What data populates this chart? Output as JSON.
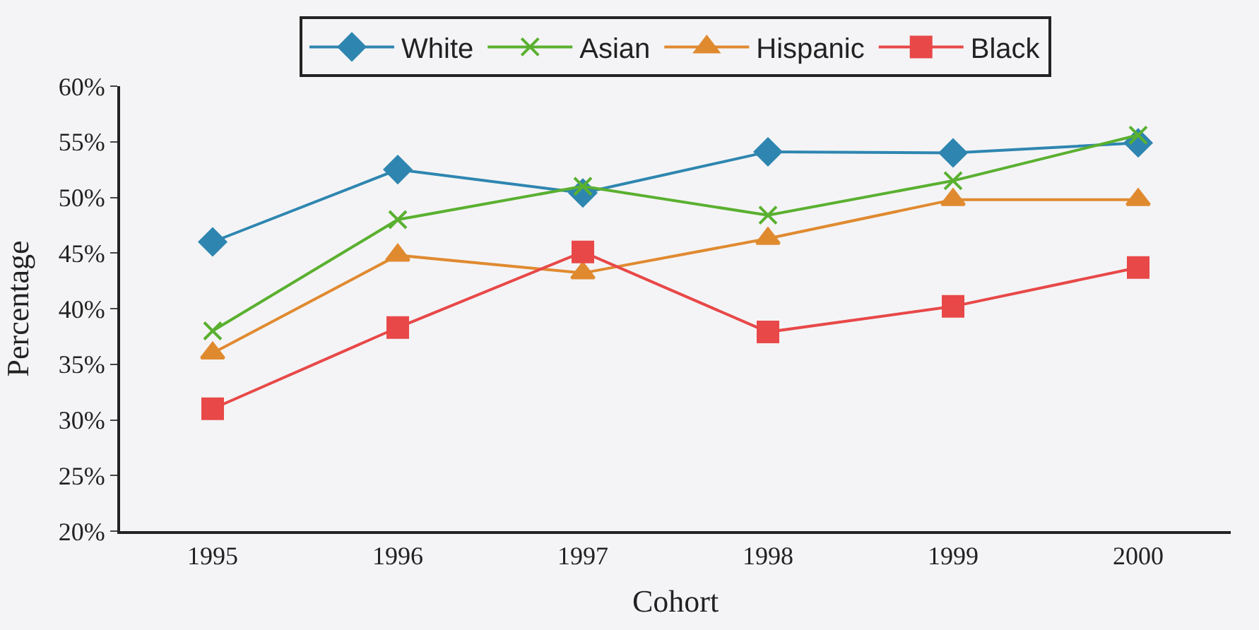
{
  "chart_data": {
    "type": "line",
    "xlabel": "Cohort",
    "ylabel": "Percentage",
    "categories": [
      "1995",
      "1996",
      "1997",
      "1998",
      "1999",
      "2000"
    ],
    "series": [
      {
        "name": "White",
        "color": "#2e86b0",
        "marker": "diamond",
        "values": [
          46,
          52.5,
          50.4,
          54.1,
          54,
          54.9
        ]
      },
      {
        "name": "Asian",
        "color": "#5ab030",
        "marker": "cross",
        "values": [
          38,
          48,
          51,
          48.4,
          51.5,
          55.6
        ]
      },
      {
        "name": "Hispanic",
        "color": "#e08a30",
        "marker": "triangle",
        "values": [
          36,
          44.8,
          43.2,
          46.3,
          49.8,
          49.8
        ]
      },
      {
        "name": "Black",
        "color": "#e84848",
        "marker": "square",
        "values": [
          31,
          38.3,
          45.1,
          37.9,
          40.2,
          43.7
        ]
      }
    ],
    "ylim": [
      20,
      60
    ],
    "yticks": [
      {
        "value": 20,
        "label": "20%"
      },
      {
        "value": 25,
        "label": "25%"
      },
      {
        "value": 30,
        "label": "30%"
      },
      {
        "value": 35,
        "label": "35%"
      },
      {
        "value": 40,
        "label": "40%"
      },
      {
        "value": 45,
        "label": "45%"
      },
      {
        "value": 50,
        "label": "50%"
      },
      {
        "value": 55,
        "label": "55%"
      },
      {
        "value": 60,
        "label": "60%"
      }
    ],
    "grid": false,
    "legend": "top",
    "line_style": "solid"
  }
}
